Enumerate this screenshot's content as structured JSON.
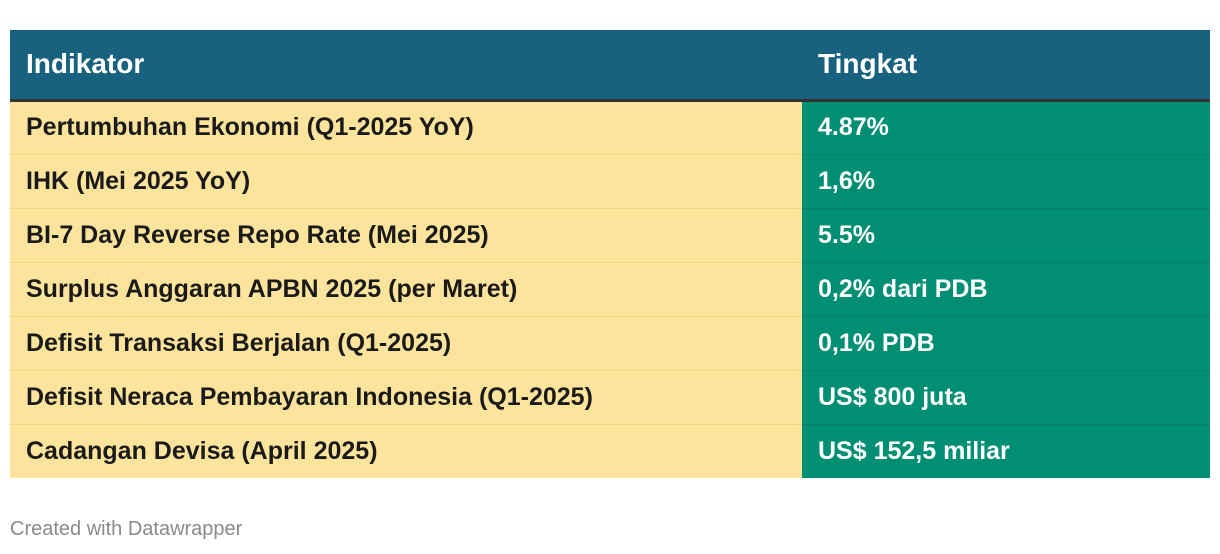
{
  "table": {
    "headers": [
      "Indikator",
      "Tingkat"
    ],
    "rows": [
      {
        "indikator": "Pertumbuhan Ekonomi (Q1-2025 YoY)",
        "tingkat": "4.87%"
      },
      {
        "indikator": "IHK (Mei 2025 YoY)",
        "tingkat": "1,6%"
      },
      {
        "indikator": "BI-7 Day Reverse Repo Rate (Mei 2025)",
        "tingkat": "5.5%"
      },
      {
        "indikator": "Surplus Anggaran APBN 2025 (per Maret)",
        "tingkat": "0,2% dari PDB"
      },
      {
        "indikator": "Defisit Transaksi Berjalan (Q1-2025)",
        "tingkat": "0,1% PDB"
      },
      {
        "indikator": "Defisit Neraca Pembayaran Indonesia (Q1-2025)",
        "tingkat": "US$ 800 juta"
      },
      {
        "indikator": "Cadangan Devisa (April 2025)",
        "tingkat": "US$ 152,5 miliar"
      }
    ]
  },
  "colors": {
    "header_bg": "#18617f",
    "indicator_bg": "#fde49c",
    "value_bg": "#008f72"
  },
  "credit": "Created with Datawrapper"
}
